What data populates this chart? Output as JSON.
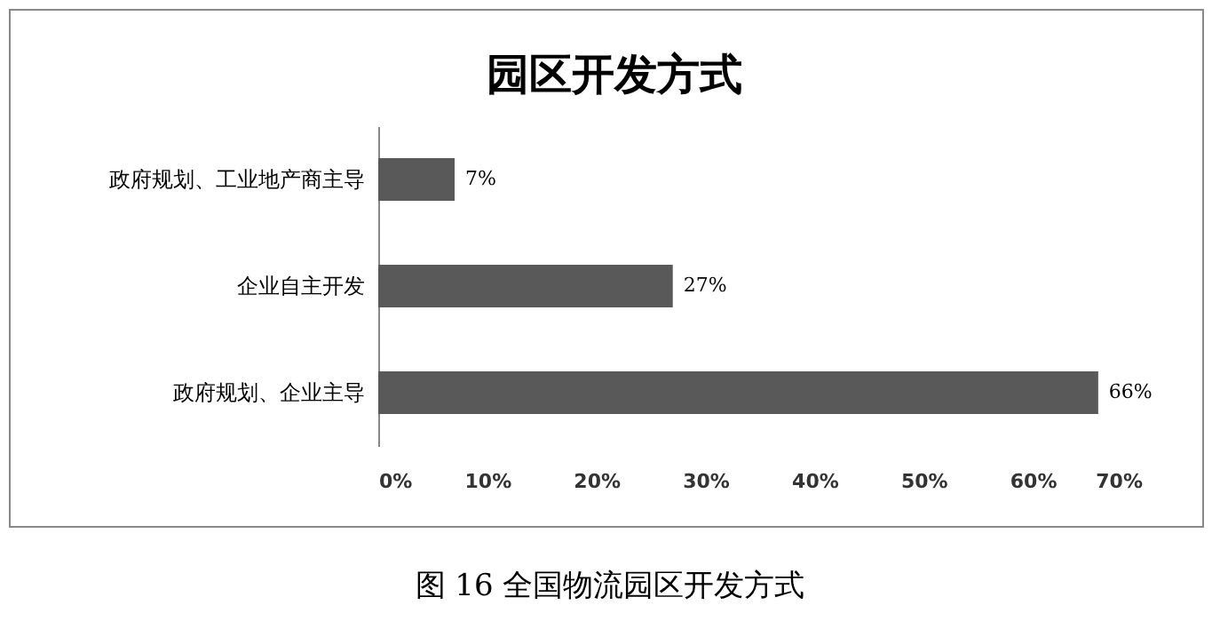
{
  "chart_data": {
    "type": "bar",
    "orientation": "horizontal",
    "title": "园区开发方式",
    "categories": [
      "政府规划、工业地产商主导",
      "企业自主开发",
      "政府规划、企业主导"
    ],
    "values": [
      7,
      27,
      66
    ],
    "color": "#595959",
    "value_labels": [
      "7%",
      "27%",
      "66%"
    ],
    "xlim": [
      0,
      70
    ],
    "xticks": [
      {
        "value": 0,
        "label": "0%"
      },
      {
        "value": 10,
        "label": "10%"
      },
      {
        "value": 20,
        "label": "20%"
      },
      {
        "value": 30,
        "label": "30%"
      },
      {
        "value": 40,
        "label": "40%"
      },
      {
        "value": 50,
        "label": "50%"
      },
      {
        "value": 60,
        "label": "60%"
      },
      {
        "value": 70,
        "label": "70%"
      }
    ],
    "grid": false,
    "annotations": [
      "图 16  全国物流园区开发方式"
    ]
  }
}
